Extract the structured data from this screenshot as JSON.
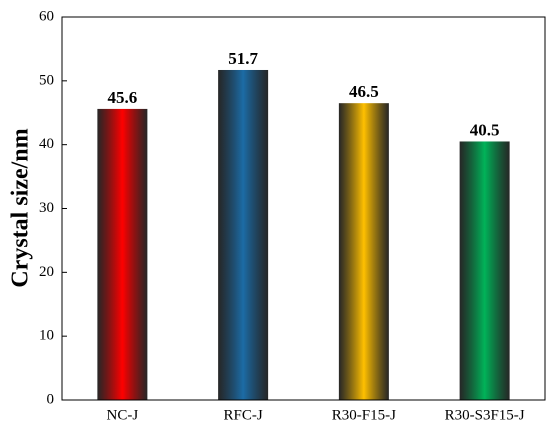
{
  "chart_data": {
    "type": "bar",
    "y_label": "Crystal size/nm",
    "categories": [
      "NC-J",
      "RFC-J",
      "R30-F15-J",
      "R30-S3F15-J"
    ],
    "values": [
      45.6,
      51.7,
      46.5,
      40.5
    ],
    "colors": [
      "#ff0000",
      "#1c6ca6",
      "#ffc000",
      "#00b359"
    ],
    "ylim": [
      0,
      60
    ],
    "yticks": [
      0,
      10,
      20,
      30,
      40,
      50,
      60
    ],
    "grid": false
  }
}
